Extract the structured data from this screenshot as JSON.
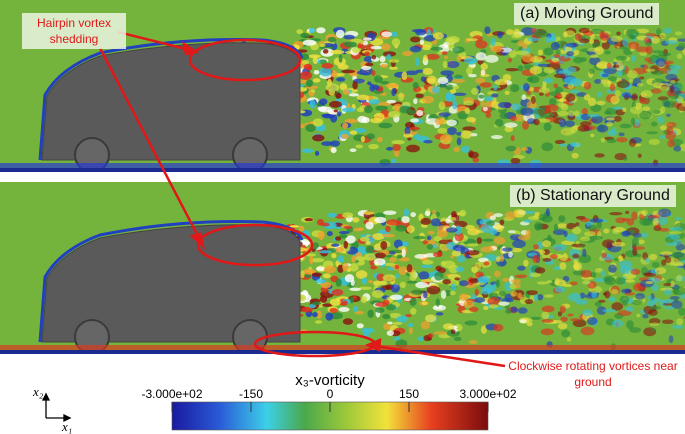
{
  "panels": [
    {
      "label": "(a) Moving Ground"
    },
    {
      "label": "(b) Stationary Ground"
    }
  ],
  "annotations": {
    "hairpin": "Hairpin vortex shedding",
    "clockwise": "Clockwise rotating vortices near ground"
  },
  "axes": {
    "vertical": "x₂",
    "horizontal": "x₁"
  },
  "colorbar": {
    "title": "x₃-vorticity",
    "range": [
      -300,
      300
    ],
    "ticks": [
      {
        "value": -300,
        "label": "-3.000e+02"
      },
      -150,
      0,
      150,
      {
        "value": 300,
        "label": "3.000e+02"
      }
    ]
  }
}
